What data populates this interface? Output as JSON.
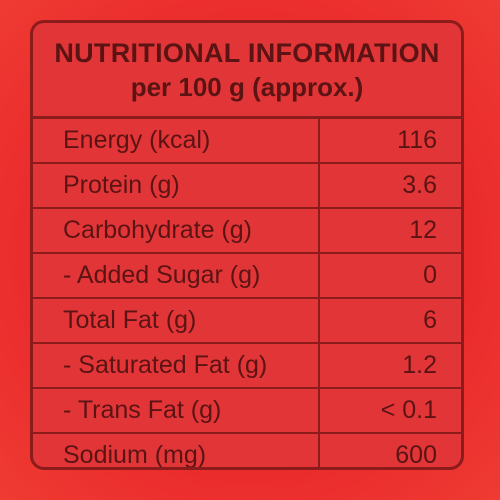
{
  "header": {
    "title": "NUTRITIONAL INFORMATION",
    "subtitle": "per 100 g (approx.)"
  },
  "table": {
    "rows": [
      [
        "Energy (kcal)",
        "116"
      ],
      [
        "Protein (g)",
        "3.6"
      ],
      [
        "Carbohydrate (g)",
        "12"
      ],
      [
        "- Added Sugar (g)",
        "0"
      ],
      [
        "Total Fat (g)",
        "6"
      ],
      [
        "- Saturated Fat (g)",
        "1.2"
      ],
      [
        "- Trans Fat (g)",
        "< 0.1"
      ],
      [
        "Sodium (mg)",
        "600"
      ]
    ]
  }
}
